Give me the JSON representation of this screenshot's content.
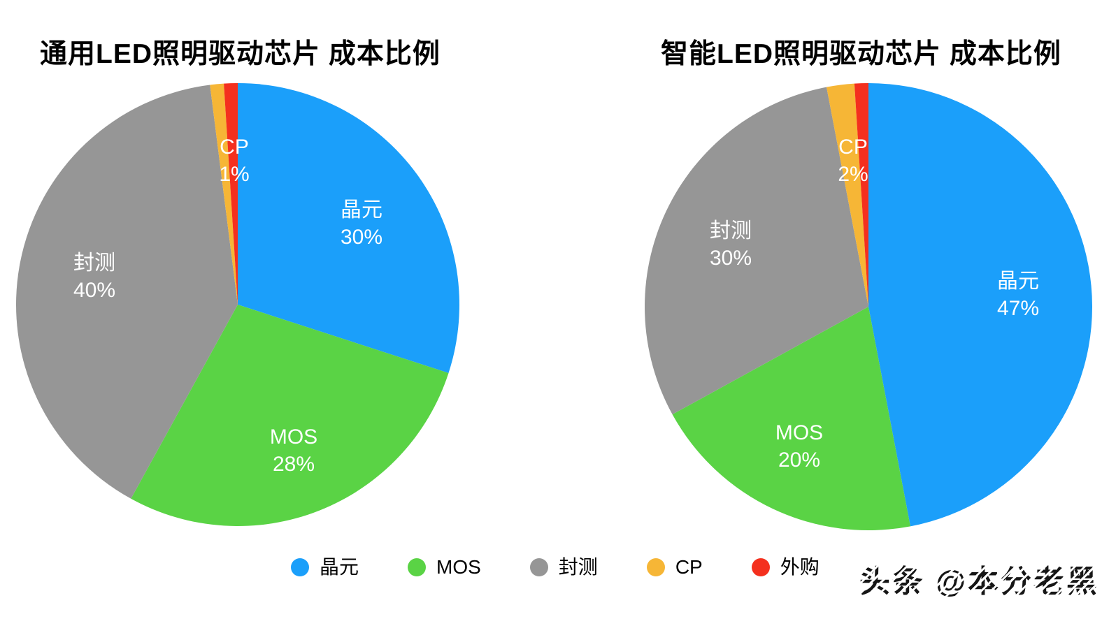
{
  "charts": [
    {
      "title": "通用LED照明驱动芯片 成本比例",
      "slice_labels": [
        {
          "name": "晶元",
          "pct": "30%"
        },
        {
          "name": "MOS",
          "pct": "28%"
        },
        {
          "name": "封测",
          "pct": "40%"
        },
        {
          "name": "CP",
          "pct": "1%"
        }
      ]
    },
    {
      "title": "智能LED照明驱动芯片 成本比例",
      "slice_labels": [
        {
          "name": "晶元",
          "pct": "47%"
        },
        {
          "name": "MOS",
          "pct": "20%"
        },
        {
          "name": "封测",
          "pct": "30%"
        },
        {
          "name": "CP",
          "pct": "2%"
        }
      ]
    }
  ],
  "legend": {
    "items": [
      {
        "label": "晶元",
        "color": "#1B9FFA"
      },
      {
        "label": "MOS",
        "color": "#5AD345"
      },
      {
        "label": "封测",
        "color": "#969696"
      },
      {
        "label": "CP",
        "color": "#F6B636"
      },
      {
        "label": "外购",
        "color": "#F4301E"
      }
    ]
  },
  "watermark": "头条 @本分老黑",
  "colors": {
    "background": "#ffffff",
    "title_text": "#000000",
    "slice_label_text": "#ffffff"
  },
  "chart_data": [
    {
      "type": "pie",
      "title": "通用LED照明驱动芯片 成本比例",
      "labels": [
        "晶元",
        "MOS",
        "封测",
        "CP",
        "外购"
      ],
      "values": [
        30,
        28,
        40,
        1,
        1
      ],
      "unit": "%",
      "colors": [
        "#1B9FFA",
        "#5AD345",
        "#969696",
        "#F6B636",
        "#F4301E"
      ],
      "start_angle": "12-oclock",
      "direction": "clockwise",
      "legend_position": "bottom",
      "notes": "外购 slice has no on-pie data label"
    },
    {
      "type": "pie",
      "title": "智能LED照明驱动芯片 成本比例",
      "labels": [
        "晶元",
        "MOS",
        "封测",
        "CP",
        "外购"
      ],
      "values": [
        47,
        20,
        30,
        2,
        1
      ],
      "unit": "%",
      "colors": [
        "#1B9FFA",
        "#5AD345",
        "#969696",
        "#F6B636",
        "#F4301E"
      ],
      "start_angle": "12-oclock",
      "direction": "clockwise",
      "legend_position": "bottom",
      "notes": "外购 slice has no on-pie data label"
    }
  ]
}
